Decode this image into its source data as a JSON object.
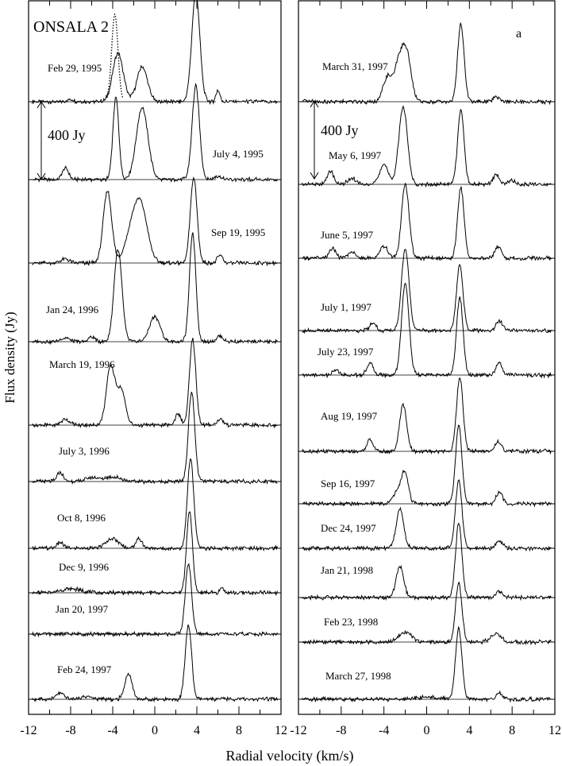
{
  "figure": {
    "title": "ONSALA 2",
    "panel_letter": "a",
    "ylabel": "Flux density (Jy)",
    "xlabel": "Radial velocity (km/s)",
    "scale_bar_label": "400 Jy"
  },
  "chart_data": {
    "type": "line",
    "xlim": [
      -12,
      12
    ],
    "xticks": [
      "-12",
      "-8",
      "-4",
      "0",
      "4",
      "8",
      "12"
    ],
    "xlabel": "Radial velocity (km/s)",
    "ylabel": "Flux density (Jy)",
    "scale_bar_jy": 400,
    "title": "ONSALA 2",
    "panels": [
      {
        "name": "left",
        "series": [
          {
            "date": "Feb 29, 1995",
            "peaks": [
              [
                -3.5,
                250,
                0.5
              ],
              [
                -1.2,
                180,
                0.5
              ],
              [
                3.9,
                560,
                0.38
              ],
              [
                6.0,
                60,
                0.18
              ],
              [
                -8.0,
                12,
                0.3
              ]
            ],
            "extra_dotted_peak": [
              -3.8,
              450,
              0.3
            ]
          },
          {
            "date": "July 4, 1995",
            "peaks": [
              [
                -3.7,
                420,
                0.28
              ],
              [
                -1.2,
                370,
                0.55
              ],
              [
                3.9,
                480,
                0.35
              ],
              [
                -8.5,
                60,
                0.3
              ],
              [
                6.0,
                20,
                0.3
              ]
            ]
          },
          {
            "date": "Sep 19, 1995",
            "peaks": [
              [
                -4.5,
                370,
                0.4
              ],
              [
                -2.0,
                200,
                0.7
              ],
              [
                -1.2,
                200,
                0.6
              ],
              [
                3.7,
                440,
                0.32
              ],
              [
                6.2,
                40,
                0.25
              ],
              [
                -8.5,
                20,
                0.4
              ]
            ]
          },
          {
            "date": "Jan 24, 1996",
            "peaks": [
              [
                -3.5,
                470,
                0.38
              ],
              [
                0.0,
                130,
                0.5
              ],
              [
                3.6,
                560,
                0.3
              ],
              [
                6.2,
                30,
                0.3
              ],
              [
                -8.5,
                20,
                0.4
              ],
              [
                -6.0,
                25,
                0.3
              ]
            ]
          },
          {
            "date": "March 19, 1996",
            "peaks": [
              [
                -4.2,
                300,
                0.4
              ],
              [
                -3.2,
                180,
                0.4
              ],
              [
                3.6,
                440,
                0.3
              ],
              [
                2.2,
                60,
                0.25
              ],
              [
                6.2,
                30,
                0.3
              ],
              [
                -8.5,
                30,
                0.4
              ]
            ]
          },
          {
            "date": "July 3, 1996",
            "peaks": [
              [
                -9.0,
                45,
                0.3
              ],
              [
                3.5,
                460,
                0.3
              ],
              [
                -4.0,
                25,
                0.8
              ],
              [
                -6.0,
                20,
                0.6
              ]
            ]
          },
          {
            "date": "Oct 8, 1996",
            "peaks": [
              [
                -9.0,
                30,
                0.3
              ],
              [
                -4.0,
                50,
                0.6
              ],
              [
                -1.5,
                50,
                0.3
              ],
              [
                3.4,
                460,
                0.3
              ]
            ]
          },
          {
            "date": "Dec 9, 1996",
            "peaks": [
              [
                -8.0,
                20,
                1.0
              ],
              [
                3.3,
                420,
                0.28
              ],
              [
                6.4,
                25,
                0.2
              ]
            ]
          },
          {
            "date": "Jan 20, 1997",
            "peaks": [
              [
                3.2,
                360,
                0.3
              ]
            ]
          },
          {
            "date": "Feb 24, 1997",
            "peaks": [
              [
                -9.0,
                30,
                0.4
              ],
              [
                -2.5,
                130,
                0.35
              ],
              [
                3.2,
                380,
                0.3
              ],
              [
                -6.5,
                15,
                0.5
              ]
            ]
          }
        ]
      },
      {
        "name": "right",
        "series": [
          {
            "date": "March 31, 1997",
            "peaks": [
              [
                -3.7,
                120,
                0.4
              ],
              [
                -2.5,
                220,
                0.5
              ],
              [
                -1.8,
                180,
                0.4
              ],
              [
                3.2,
                400,
                0.3
              ],
              [
                6.5,
                25,
                0.3
              ]
            ]
          },
          {
            "date": "May 6, 1997",
            "peaks": [
              [
                -9.0,
                70,
                0.3
              ],
              [
                -7.0,
                30,
                0.4
              ],
              [
                -4.0,
                100,
                0.4
              ],
              [
                -2.2,
                400,
                0.4
              ],
              [
                3.2,
                380,
                0.3
              ],
              [
                6.5,
                50,
                0.3
              ],
              [
                8.0,
                20,
                0.3
              ]
            ]
          },
          {
            "date": "June 5, 1997",
            "peaks": [
              [
                -8.8,
                50,
                0.3
              ],
              [
                -7.0,
                30,
                0.4
              ],
              [
                -4.0,
                60,
                0.4
              ],
              [
                -2.0,
                380,
                0.35
              ],
              [
                3.2,
                360,
                0.3
              ],
              [
                6.7,
                60,
                0.3
              ]
            ]
          },
          {
            "date": "July 1, 1997",
            "peaks": [
              [
                -5.0,
                40,
                0.3
              ],
              [
                -2.0,
                420,
                0.35
              ],
              [
                3.1,
                340,
                0.3
              ],
              [
                6.8,
                50,
                0.3
              ]
            ]
          },
          {
            "date": "July 23, 1997",
            "peaks": [
              [
                -8.5,
                25,
                0.3
              ],
              [
                -5.3,
                60,
                0.3
              ],
              [
                -2.0,
                470,
                0.35
              ],
              [
                3.1,
                400,
                0.3
              ],
              [
                6.8,
                60,
                0.3
              ]
            ]
          },
          {
            "date": "Aug 19, 1997",
            "peaks": [
              [
                -5.3,
                60,
                0.3
              ],
              [
                -2.2,
                240,
                0.33
              ],
              [
                3.1,
                380,
                0.3
              ],
              [
                6.7,
                50,
                0.3
              ]
            ]
          },
          {
            "date": "Sep 16, 1997",
            "peaks": [
              [
                -2.5,
                80,
                0.5
              ],
              [
                -2.0,
                120,
                0.3
              ],
              [
                3.0,
                400,
                0.3
              ],
              [
                6.8,
                60,
                0.3
              ]
            ]
          },
          {
            "date": "Dec 24, 1997",
            "peaks": [
              [
                -2.5,
                200,
                0.35
              ],
              [
                3.0,
                350,
                0.3
              ],
              [
                6.8,
                40,
                0.3
              ]
            ]
          },
          {
            "date": "Jan 21, 1998",
            "peaks": [
              [
                -2.5,
                160,
                0.35
              ],
              [
                3.0,
                380,
                0.3
              ],
              [
                6.8,
                30,
                0.3
              ]
            ]
          },
          {
            "date": "Feb 23, 1998",
            "peaks": [
              [
                -2.0,
                50,
                0.6
              ],
              [
                3.0,
                300,
                0.3
              ],
              [
                6.5,
                40,
                0.5
              ]
            ]
          },
          {
            "date": "March 27, 1998",
            "peaks": [
              [
                3.0,
                360,
                0.3
              ],
              [
                6.8,
                30,
                0.3
              ],
              [
                0.0,
                12,
                1.0
              ]
            ]
          }
        ]
      }
    ]
  }
}
